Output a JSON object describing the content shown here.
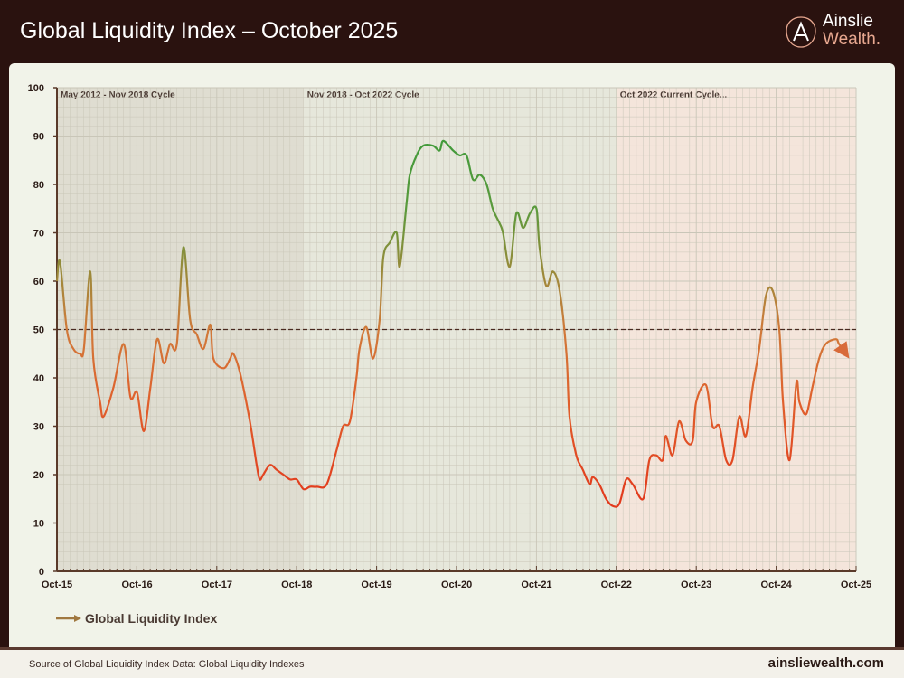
{
  "header": {
    "title": "Global Liquidity Index – October 2025"
  },
  "logo": {
    "line1": "Ainslie",
    "line2": "Wealth.",
    "icon": "letter-a-logo-icon"
  },
  "footer": {
    "source": "Source of Global Liquidity Index Data: Global Liquidity Indexes",
    "site": "ainsliewealth.com"
  },
  "colors": {
    "high": "#3f9a3a",
    "mid": "#9a8a3a",
    "low": "#e23a1c",
    "brand_dark": "#2a120f"
  },
  "chart_data": {
    "type": "line",
    "title": "",
    "xlabel": "",
    "ylabel": "",
    "ylim": [
      0,
      100
    ],
    "yticks": [
      0,
      10,
      20,
      30,
      40,
      50,
      60,
      70,
      80,
      90,
      100
    ],
    "xlim": [
      "2015-10-01",
      "2025-10-01"
    ],
    "xticks": [
      {
        "date": "2015-10-01",
        "label": "Oct-15"
      },
      {
        "date": "2016-10-01",
        "label": "Oct-16"
      },
      {
        "date": "2017-10-01",
        "label": "Oct-17"
      },
      {
        "date": "2018-10-01",
        "label": "Oct-18"
      },
      {
        "date": "2019-10-01",
        "label": "Oct-19"
      },
      {
        "date": "2020-10-01",
        "label": "Oct-20"
      },
      {
        "date": "2021-10-01",
        "label": "Oct-21"
      },
      {
        "date": "2022-10-01",
        "label": "Oct-22"
      },
      {
        "date": "2023-10-01",
        "label": "Oct-23"
      },
      {
        "date": "2024-10-01",
        "label": "Oct-24"
      },
      {
        "date": "2025-10-01",
        "label": "Oct-25"
      }
    ],
    "grid": true,
    "reference_line": {
      "y": 50,
      "style": "dashed"
    },
    "regions": [
      {
        "label": "May 2012 - Nov 2018 Cycle",
        "start": "2015-10-01",
        "end": "2018-11-01",
        "color": "#dcd8cc"
      },
      {
        "label": "Nov 2018 - Oct 2022 Cycle",
        "start": "2018-11-01",
        "end": "2022-10-01",
        "color": "#e4e4d8"
      },
      {
        "label": "Oct 2022 Current Cycle...",
        "start": "2022-10-01",
        "end": "2025-10-01",
        "color": "#f4e2d8"
      }
    ],
    "legend": {
      "position": "bottom-left"
    },
    "series": [
      {
        "name": "Global Liquidity Index",
        "legend_color": "#a07840",
        "points": [
          [
            "2015-10-01",
            60
          ],
          [
            "2015-10-15",
            64
          ],
          [
            "2015-11-15",
            50
          ],
          [
            "2015-12-15",
            46
          ],
          [
            "2016-01-15",
            45
          ],
          [
            "2016-02-01",
            46
          ],
          [
            "2016-03-01",
            62
          ],
          [
            "2016-03-15",
            44
          ],
          [
            "2016-04-15",
            35
          ],
          [
            "2016-05-01",
            32
          ],
          [
            "2016-06-15",
            38
          ],
          [
            "2016-08-01",
            47
          ],
          [
            "2016-09-01",
            36
          ],
          [
            "2016-10-01",
            37
          ],
          [
            "2016-11-01",
            29
          ],
          [
            "2016-12-01",
            38
          ],
          [
            "2017-01-01",
            48
          ],
          [
            "2017-02-01",
            43
          ],
          [
            "2017-03-01",
            47
          ],
          [
            "2017-04-01",
            47
          ],
          [
            "2017-05-01",
            67
          ],
          [
            "2017-06-01",
            52
          ],
          [
            "2017-07-01",
            49
          ],
          [
            "2017-08-01",
            46
          ],
          [
            "2017-09-01",
            51
          ],
          [
            "2017-09-15",
            44
          ],
          [
            "2017-11-01",
            42
          ],
          [
            "2017-12-01",
            44
          ],
          [
            "2017-12-15",
            45
          ],
          [
            "2018-01-15",
            41
          ],
          [
            "2018-03-01",
            31
          ],
          [
            "2018-04-01",
            22
          ],
          [
            "2018-04-15",
            19
          ],
          [
            "2018-05-01",
            20
          ],
          [
            "2018-06-01",
            22
          ],
          [
            "2018-07-01",
            21
          ],
          [
            "2018-08-01",
            20
          ],
          [
            "2018-09-01",
            19
          ],
          [
            "2018-10-01",
            19
          ],
          [
            "2018-11-01",
            17
          ],
          [
            "2018-12-01",
            17.5
          ],
          [
            "2019-01-01",
            17.5
          ],
          [
            "2019-02-15",
            18
          ],
          [
            "2019-04-01",
            25
          ],
          [
            "2019-05-01",
            30
          ],
          [
            "2019-06-01",
            31
          ],
          [
            "2019-07-01",
            40
          ],
          [
            "2019-07-15",
            46
          ],
          [
            "2019-08-15",
            50.5
          ],
          [
            "2019-09-15",
            44
          ],
          [
            "2019-10-15",
            52
          ],
          [
            "2019-11-01",
            65
          ],
          [
            "2019-12-01",
            68
          ],
          [
            "2020-01-01",
            70
          ],
          [
            "2020-01-15",
            63
          ],
          [
            "2020-02-15",
            76
          ],
          [
            "2020-03-01",
            82
          ],
          [
            "2020-04-01",
            86
          ],
          [
            "2020-05-01",
            88
          ],
          [
            "2020-06-15",
            88
          ],
          [
            "2020-07-15",
            87
          ],
          [
            "2020-08-01",
            89
          ],
          [
            "2020-09-15",
            87
          ],
          [
            "2020-10-15",
            86
          ],
          [
            "2020-11-15",
            86
          ],
          [
            "2020-12-15",
            81
          ],
          [
            "2021-01-15",
            82
          ],
          [
            "2021-02-15",
            80
          ],
          [
            "2021-03-15",
            75
          ],
          [
            "2021-04-15",
            72
          ],
          [
            "2021-05-01",
            70
          ],
          [
            "2021-06-01",
            63
          ],
          [
            "2021-07-01",
            74
          ],
          [
            "2021-08-01",
            71
          ],
          [
            "2021-09-01",
            74
          ],
          [
            "2021-10-01",
            75
          ],
          [
            "2021-10-15",
            67
          ],
          [
            "2021-11-15",
            59
          ],
          [
            "2021-12-15",
            62
          ],
          [
            "2022-01-15",
            58
          ],
          [
            "2022-02-15",
            45
          ],
          [
            "2022-03-01",
            32
          ],
          [
            "2022-04-01",
            24
          ],
          [
            "2022-05-01",
            21
          ],
          [
            "2022-06-01",
            18
          ],
          [
            "2022-06-15",
            19.5
          ],
          [
            "2022-07-15",
            18
          ],
          [
            "2022-08-15",
            15
          ],
          [
            "2022-09-15",
            13.5
          ],
          [
            "2022-10-15",
            14
          ],
          [
            "2022-11-15",
            19
          ],
          [
            "2022-12-15",
            18
          ],
          [
            "2023-02-01",
            15
          ],
          [
            "2023-03-01",
            23
          ],
          [
            "2023-04-01",
            24
          ],
          [
            "2023-05-01",
            23
          ],
          [
            "2023-05-15",
            28
          ],
          [
            "2023-06-15",
            24
          ],
          [
            "2023-07-15",
            31
          ],
          [
            "2023-08-15",
            27
          ],
          [
            "2023-09-15",
            27
          ],
          [
            "2023-10-01",
            35
          ],
          [
            "2023-11-15",
            38.5
          ],
          [
            "2023-12-15",
            30
          ],
          [
            "2024-01-15",
            30
          ],
          [
            "2024-02-15",
            23
          ],
          [
            "2024-03-15",
            23
          ],
          [
            "2024-04-15",
            32
          ],
          [
            "2024-05-15",
            28
          ],
          [
            "2024-06-15",
            38
          ],
          [
            "2024-07-15",
            46
          ],
          [
            "2024-08-15",
            57
          ],
          [
            "2024-09-15",
            58
          ],
          [
            "2024-10-15",
            50
          ],
          [
            "2024-11-01",
            35
          ],
          [
            "2024-12-01",
            23
          ],
          [
            "2025-01-01",
            39
          ],
          [
            "2025-01-15",
            35
          ],
          [
            "2025-02-15",
            32.5
          ],
          [
            "2025-03-15",
            38
          ],
          [
            "2025-04-15",
            44
          ],
          [
            "2025-05-15",
            47
          ],
          [
            "2025-07-01",
            48
          ],
          [
            "2025-07-15",
            47
          ],
          [
            "2025-08-15",
            45
          ]
        ]
      }
    ]
  }
}
